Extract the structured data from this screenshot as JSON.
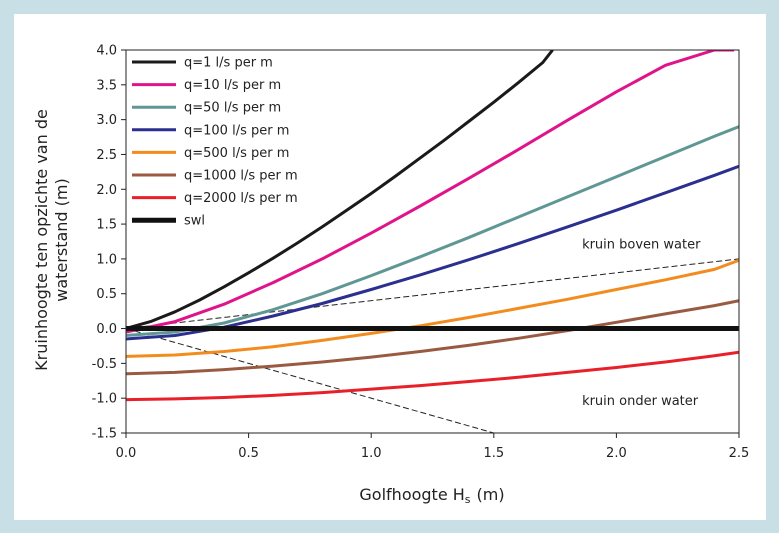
{
  "chart_data": {
    "type": "line",
    "xlabel_main": "Golfhoogte H",
    "xlabel_sub": "s",
    "xlabel_unit": "(m)",
    "ylabel_line1": "Kruinhoogte ten opzichte van de",
    "ylabel_line2": "waterstand  (m)",
    "xlim": [
      0,
      2.5
    ],
    "ylim": [
      -1.5,
      4.0
    ],
    "xticks": [
      "0.0",
      "0.5",
      "1.0",
      "1.5",
      "2.0",
      "2.5"
    ],
    "yticks": [
      "4.0",
      "3.5",
      "3.0",
      "2.5",
      "2.0",
      "1.5",
      "1.0",
      "0.5",
      "0.0",
      "-0.5",
      "-1.0",
      "-1.5"
    ],
    "legend_position": "top-left",
    "annotations": [
      {
        "text": "kruin boven water",
        "x": 1.86,
        "y": 1.15
      },
      {
        "text": "kruin onder water",
        "x": 1.86,
        "y": -1.1
      }
    ],
    "series": [
      {
        "name": "q=1 l/s per m",
        "color": "#1a1a1a",
        "x": [
          0,
          0.1,
          0.2,
          0.3,
          0.4,
          0.5,
          0.6,
          0.7,
          0.8,
          0.9,
          1.0,
          1.1,
          1.2,
          1.3,
          1.4,
          1.5,
          1.6,
          1.7,
          1.74
        ],
        "y": [
          0,
          0.1,
          0.24,
          0.41,
          0.6,
          0.8,
          1.01,
          1.23,
          1.46,
          1.7,
          1.94,
          2.19,
          2.45,
          2.71,
          2.98,
          3.25,
          3.53,
          3.82,
          4.0
        ]
      },
      {
        "name": "q=10 l/s per m",
        "color": "#e0148a",
        "x": [
          0,
          0.2,
          0.4,
          0.6,
          0.8,
          1.0,
          1.2,
          1.4,
          1.6,
          1.8,
          2.0,
          2.2,
          2.4,
          2.48
        ],
        "y": [
          -0.05,
          0.1,
          0.35,
          0.66,
          1.0,
          1.37,
          1.76,
          2.16,
          2.57,
          2.99,
          3.4,
          3.78,
          4.0,
          4.0
        ]
      },
      {
        "name": "q=50 l/s per m",
        "color": "#5f9794",
        "x": [
          0,
          0.2,
          0.4,
          0.6,
          0.8,
          1.0,
          1.2,
          1.4,
          1.6,
          1.8,
          2.0,
          2.2,
          2.4,
          2.5
        ],
        "y": [
          -0.1,
          -0.05,
          0.08,
          0.27,
          0.5,
          0.76,
          1.03,
          1.31,
          1.6,
          1.89,
          2.18,
          2.47,
          2.76,
          2.9
        ]
      },
      {
        "name": "q=100 l/s per m",
        "color": "#2b2f8f",
        "x": [
          0,
          0.2,
          0.4,
          0.6,
          0.8,
          1.0,
          1.2,
          1.4,
          1.6,
          1.8,
          2.0,
          2.2,
          2.4,
          2.5
        ],
        "y": [
          -0.15,
          -0.1,
          0.02,
          0.18,
          0.36,
          0.56,
          0.77,
          0.99,
          1.22,
          1.46,
          1.7,
          1.95,
          2.2,
          2.33
        ]
      },
      {
        "name": "q=500 l/s per m",
        "color": "#f28c1e",
        "x": [
          0,
          0.2,
          0.4,
          0.6,
          0.8,
          1.0,
          1.2,
          1.4,
          1.6,
          1.8,
          2.0,
          2.2,
          2.4,
          2.5
        ],
        "y": [
          -0.4,
          -0.38,
          -0.33,
          -0.26,
          -0.17,
          -0.07,
          0.04,
          0.16,
          0.29,
          0.42,
          0.56,
          0.7,
          0.85,
          0.98
        ]
      },
      {
        "name": "q=1000 l/s per m",
        "color": "#9a5a42",
        "x": [
          0,
          0.2,
          0.4,
          0.6,
          0.8,
          1.0,
          1.2,
          1.4,
          1.6,
          1.8,
          2.0,
          2.2,
          2.4,
          2.5
        ],
        "y": [
          -0.65,
          -0.63,
          -0.59,
          -0.54,
          -0.48,
          -0.41,
          -0.33,
          -0.24,
          -0.14,
          -0.03,
          0.09,
          0.21,
          0.33,
          0.4
        ]
      },
      {
        "name": "q=2000 l/s per m",
        "color": "#e8202a",
        "x": [
          0,
          0.2,
          0.4,
          0.6,
          0.8,
          1.0,
          1.2,
          1.4,
          1.6,
          1.8,
          2.0,
          2.2,
          2.4,
          2.5
        ],
        "y": [
          -1.02,
          -1.01,
          -0.99,
          -0.96,
          -0.92,
          -0.87,
          -0.82,
          -0.76,
          -0.7,
          -0.63,
          -0.56,
          -0.48,
          -0.39,
          -0.34
        ]
      },
      {
        "name": "swl",
        "color": "#111111",
        "x": [
          0,
          2.5
        ],
        "y": [
          0,
          0
        ]
      }
    ],
    "guides": [
      {
        "x": [
          0,
          2.5
        ],
        "y": [
          0,
          1.0
        ],
        "color": "#222222"
      },
      {
        "x": [
          0,
          1.5
        ],
        "y": [
          0,
          -1.5
        ],
        "color": "#222222"
      }
    ]
  }
}
